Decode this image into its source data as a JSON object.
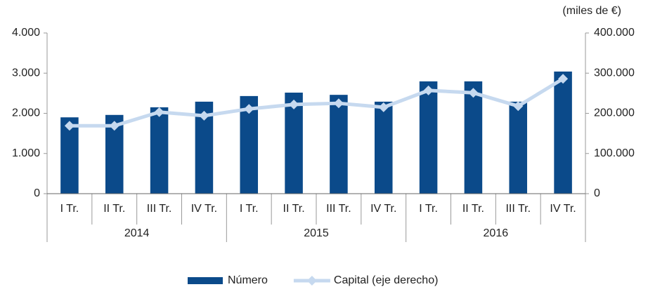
{
  "chart_data": {
    "type": "bar_line",
    "unit_label": "(miles de €)",
    "categories": [
      "I Tr.",
      "II Tr.",
      "III Tr.",
      "IV Tr.",
      "I Tr.",
      "II Tr.",
      "III Tr.",
      "IV Tr.",
      "I Tr.",
      "II Tr.",
      "III Tr.",
      "IV Tr."
    ],
    "groups": [
      "2014",
      "2015",
      "2016"
    ],
    "series": [
      {
        "name": "Número",
        "type": "bar",
        "color": "#0b4a8a",
        "values": [
          1900,
          1960,
          2150,
          2290,
          2430,
          2515,
          2460,
          2290,
          2795,
          2795,
          2290,
          3040
        ]
      },
      {
        "name": "Capital (eje derecho)",
        "type": "line",
        "axis": "y2",
        "color": "#c6d9ef",
        "values": [
          169000,
          169000,
          203000,
          194000,
          211000,
          222000,
          225000,
          215000,
          257000,
          251000,
          218000,
          286000
        ]
      }
    ],
    "ylim": [
      0,
      4000
    ],
    "yticks": [
      {
        "value": 0,
        "label": "0"
      },
      {
        "value": 1000,
        "label": "1.000"
      },
      {
        "value": 2000,
        "label": "2.000"
      },
      {
        "value": 3000,
        "label": "3.000"
      },
      {
        "value": 4000,
        "label": "4.000"
      }
    ],
    "y2lim": [
      0,
      400000
    ],
    "y2ticks": [
      {
        "value": 0,
        "label": "0"
      },
      {
        "value": 100000,
        "label": "100.000"
      },
      {
        "value": 200000,
        "label": "200.000"
      },
      {
        "value": 300000,
        "label": "300.000"
      },
      {
        "value": 400000,
        "label": "400.000"
      }
    ],
    "grid": false,
    "legend": "bottom"
  }
}
